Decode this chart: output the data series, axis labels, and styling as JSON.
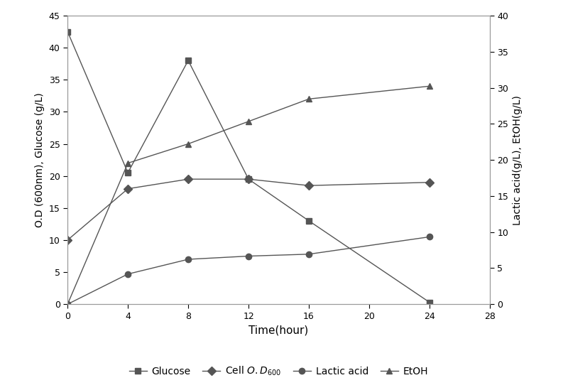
{
  "time": [
    0,
    4,
    8,
    12,
    16,
    24
  ],
  "glucose": [
    42.5,
    20.5,
    38.0,
    19.5,
    13.0,
    0.3
  ],
  "cell_od": [
    10.0,
    18.0,
    19.5,
    19.5,
    18.5,
    19.0
  ],
  "lactic_acid": [
    0.0,
    4.7,
    7.0,
    7.5,
    7.8,
    10.5
  ],
  "etoh_left_scale": [
    0.0,
    22.0,
    25.0,
    28.5,
    32.0,
    34.0
  ],
  "ylabel_left": "O.D (600nm), Glucose (g/L)",
  "ylabel_right": "Lactic acid(g/L), EtOH(g/L)",
  "xlabel": "Time(hour)",
  "ylim_left": [
    0,
    45
  ],
  "ylim_right": [
    0,
    40
  ],
  "xlim": [
    0,
    28
  ],
  "xticks": [
    0,
    4,
    8,
    12,
    16,
    20,
    24,
    28
  ],
  "yticks_left": [
    0,
    5,
    10,
    15,
    20,
    25,
    30,
    35,
    40,
    45
  ],
  "yticks_right": [
    0,
    5,
    10,
    15,
    20,
    25,
    30,
    35,
    40
  ],
  "line_color": "#555555",
  "marker_glucose": "s",
  "marker_cell": "D",
  "marker_lactic": "o",
  "marker_etoh": "^",
  "bg_color": "#ffffff",
  "lw": 1.0,
  "ms": 6
}
